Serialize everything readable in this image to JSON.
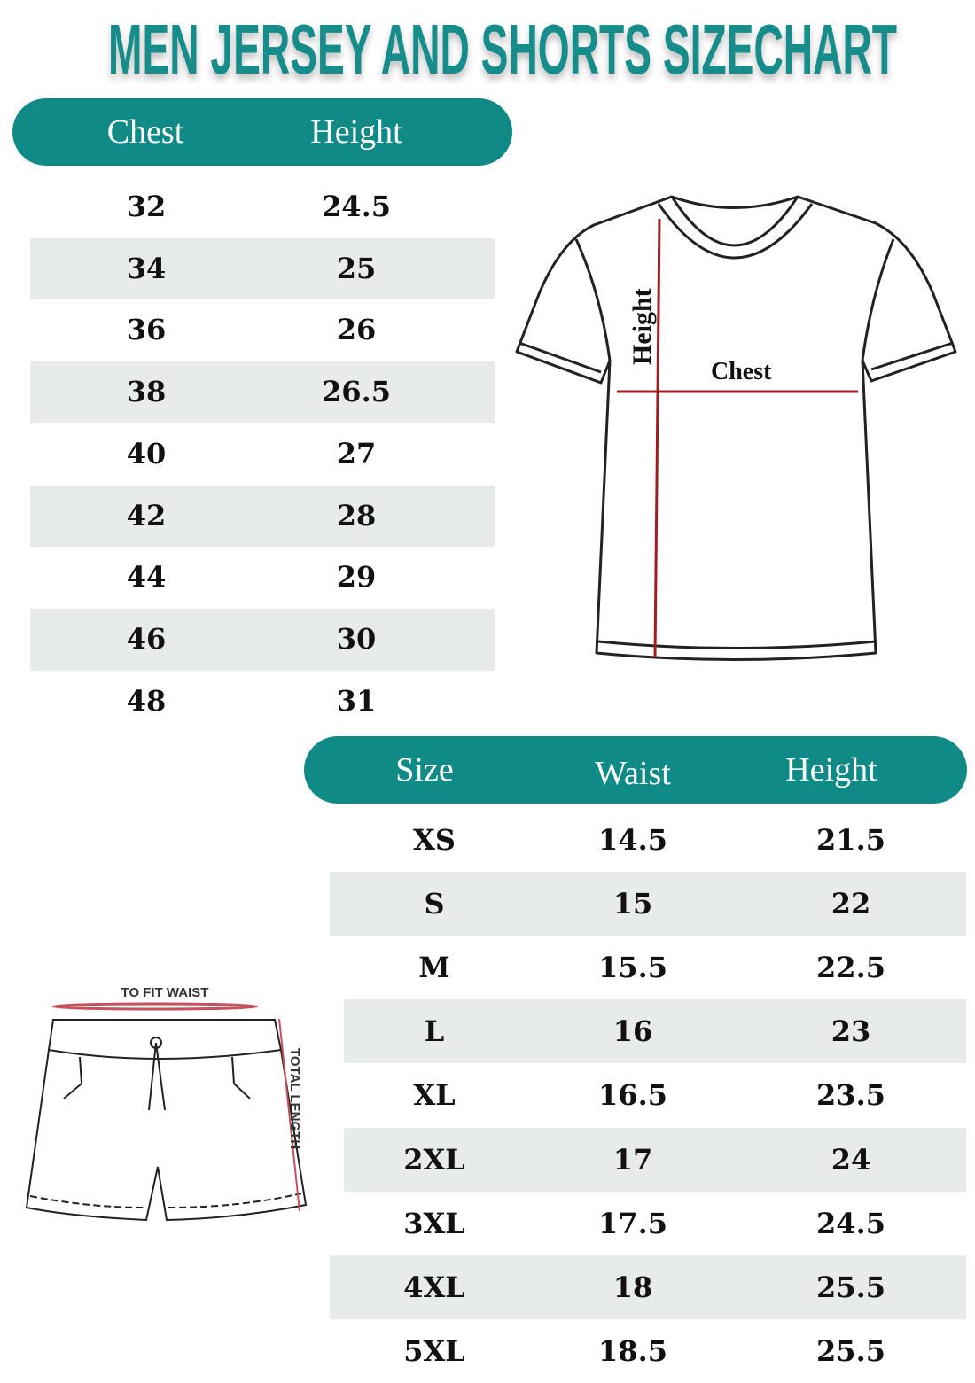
{
  "title": "MEN JERSEY AND SHORTS SIZECHART",
  "jersey_table": {
    "headers": [
      "Chest",
      "Height"
    ],
    "rows": [
      [
        "32",
        "24.5"
      ],
      [
        "34",
        "25"
      ],
      [
        "36",
        "26"
      ],
      [
        "38",
        "26.5"
      ],
      [
        "40",
        "27"
      ],
      [
        "42",
        "28"
      ],
      [
        "44",
        "29"
      ],
      [
        "46",
        "30"
      ],
      [
        "48",
        "31"
      ]
    ]
  },
  "shorts_table": {
    "headers": [
      "Size",
      "Waist",
      "Height"
    ],
    "rows": [
      [
        "XS",
        "14.5",
        "21.5"
      ],
      [
        "S",
        "15",
        "22"
      ],
      [
        "M",
        "15.5",
        "22.5"
      ],
      [
        "L",
        "16",
        "23"
      ],
      [
        "XL",
        "16.5",
        "23.5"
      ],
      [
        "2XL",
        "17",
        "24"
      ],
      [
        "3XL",
        "17.5",
        "24.5"
      ],
      [
        "4XL",
        "18",
        "25.5"
      ],
      [
        "5XL",
        "18.5",
        "25.5"
      ]
    ]
  },
  "jersey_diagram": {
    "height_label": "Height",
    "chest_label": "Chest"
  },
  "shorts_diagram": {
    "waist_label": "TO FIT WAIST",
    "length_label": "TOTAL LENGTH"
  },
  "colors": {
    "header": "#0f8a86",
    "title": "#138d8b",
    "stripe": "#e7ebea",
    "measure_line": "#a01c22"
  }
}
